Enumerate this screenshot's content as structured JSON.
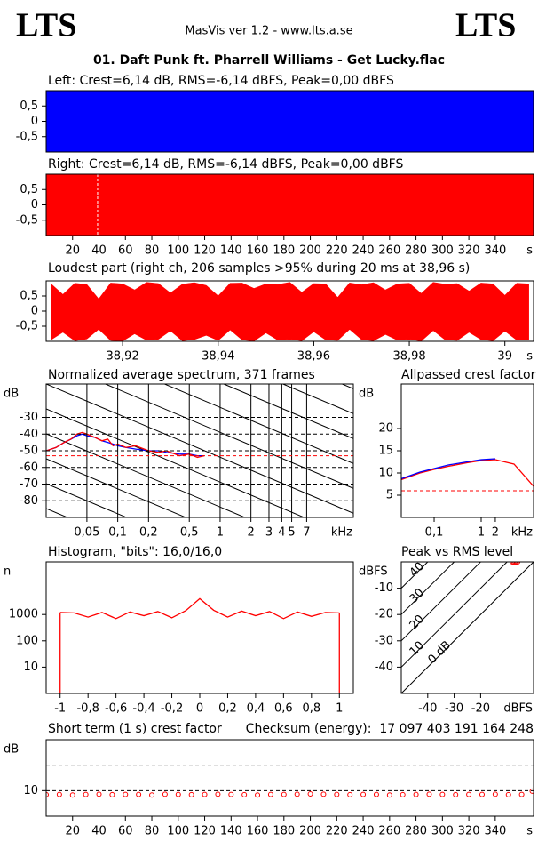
{
  "header": {
    "logo_left": "LTS",
    "logo_right": "LTS",
    "subtitle": "MasVis ver 1.2 - www.lts.a.se",
    "title": "01. Daft Punk ft. Pharrell Williams - Get Lucky.flac"
  },
  "chart_data": [
    {
      "type": "area",
      "title": "Left: Crest=6,14 dB, RMS=-6,14 dBFS, Peak=0,00 dBFS",
      "xlim": [
        0,
        369
      ],
      "ylim": [
        -1,
        1
      ],
      "yticks": [
        {
          "value": 0.5,
          "label": "0,5"
        },
        0,
        {
          "value": -0.5,
          "label": "-0,5"
        }
      ],
      "x": [
        0,
        369
      ],
      "max": [
        1,
        1
      ],
      "min": [
        -1,
        -1
      ],
      "color": "#0000ff"
    },
    {
      "type": "area",
      "title": "Right: Crest=6,14 dB, RMS=-6,14 dBFS, Peak=0,00 dBFS",
      "xlim": [
        0,
        369
      ],
      "ylim": [
        -1,
        1
      ],
      "yticks": [
        {
          "value": 0.5,
          "label": "0,5"
        },
        0,
        {
          "value": -0.5,
          "label": "-0,5"
        }
      ],
      "xticks": [
        20,
        40,
        60,
        80,
        100,
        120,
        140,
        160,
        180,
        200,
        220,
        240,
        260,
        280,
        300,
        320,
        340
      ],
      "x_label": "s",
      "x": [
        0,
        369
      ],
      "max": [
        1,
        1
      ],
      "min": [
        -1,
        -1
      ],
      "color": "#ff0000",
      "marker_x": 38.96
    },
    {
      "type": "area",
      "title": "Loudest part (right ch, 206 samples >95% during 20 ms at 38,96 s)",
      "xlim": [
        38.904,
        39.006
      ],
      "ylim": [
        -1,
        1
      ],
      "yticks": [
        {
          "value": 0.5,
          "label": "0,5"
        },
        0,
        {
          "value": -0.5,
          "label": "-0,5"
        }
      ],
      "xticks": [
        {
          "value": 38.92,
          "label": "38,92"
        },
        {
          "value": 38.94,
          "label": "38,94"
        },
        {
          "value": 38.96,
          "label": "38,96"
        },
        {
          "value": 38.98,
          "label": "38,98"
        },
        39
      ],
      "x_label": "s",
      "x": [
        38.905,
        38.9075,
        38.91,
        38.9125,
        38.915,
        38.9175,
        38.92,
        38.9225,
        38.925,
        38.9275,
        38.93,
        38.9325,
        38.935,
        38.9375,
        38.94,
        38.9425,
        38.945,
        38.9475,
        38.95,
        38.9525,
        38.955,
        38.9575,
        38.96,
        38.9625,
        38.965,
        38.9675,
        38.97,
        38.9725,
        38.975,
        38.9775,
        38.98,
        38.9825,
        38.985,
        38.9875,
        38.99,
        38.9925,
        38.995,
        38.9975,
        39,
        39.0025,
        39.005
      ],
      "max": [
        0.9,
        0.55,
        0.92,
        0.88,
        0.4,
        0.93,
        0.9,
        0.7,
        0.95,
        0.91,
        0.6,
        0.89,
        0.94,
        0.85,
        0.5,
        0.92,
        0.93,
        0.75,
        0.9,
        0.88,
        0.95,
        0.62,
        0.91,
        0.9,
        0.45,
        0.93,
        0.87,
        0.94,
        0.7,
        0.9,
        0.92,
        0.58,
        0.95,
        0.89,
        0.91,
        0.66,
        0.93,
        0.9,
        0.52,
        0.92,
        0.9
      ],
      "min": [
        -0.95,
        -0.7,
        -0.98,
        -0.92,
        -0.6,
        -0.97,
        -0.99,
        -0.75,
        -0.96,
        -0.93,
        -0.65,
        -0.98,
        -0.94,
        -0.8,
        -0.97,
        -0.62,
        -0.95,
        -0.99,
        -0.72,
        -0.96,
        -0.93,
        -0.98,
        -0.68,
        -0.95,
        -0.97,
        -0.6,
        -0.94,
        -0.98,
        -0.77,
        -0.96,
        -0.93,
        -0.99,
        -0.64,
        -0.95,
        -0.97,
        -0.7,
        -0.94,
        -0.98,
        -0.66,
        -0.96,
        -0.95
      ],
      "color": "#ff0000"
    },
    {
      "type": "line",
      "title": "Normalized average spectrum, 371 frames",
      "xscale": "log",
      "xlim": [
        0.02,
        20
      ],
      "ylim": [
        -90,
        -10
      ],
      "xticks": [
        {
          "value": 0.05,
          "label": "0,05"
        },
        {
          "value": 0.1,
          "label": "0,1"
        },
        {
          "value": 0.2,
          "label": "0,2"
        },
        {
          "value": 0.5,
          "label": "0,5"
        },
        1,
        2,
        3,
        4,
        5,
        7
      ],
      "yticks": [
        -30,
        -40,
        -50,
        -60,
        -70,
        -80
      ],
      "x_label": "kHz",
      "y_label": "dB",
      "grid": "dashed",
      "xgrid": true,
      "diagonals": true,
      "ref_line": -53,
      "ref_color": "#ff0000",
      "x": [
        0.02,
        0.025,
        0.03,
        0.035,
        0.04,
        0.045,
        0.05,
        0.06,
        0.07,
        0.08,
        0.09,
        0.1,
        0.12,
        0.15,
        0.2,
        0.25,
        0.3,
        0.4,
        0.5,
        0.6,
        0.7
      ],
      "series": [
        {
          "color": "#0000ff",
          "values": [
            -50,
            -48,
            -45,
            -43,
            -41,
            -40,
            -41,
            -42,
            -44,
            -45,
            -46,
            -47,
            -48,
            -49,
            -50,
            -50,
            -51,
            -52,
            -52,
            -53,
            -53
          ]
        },
        {
          "color": "#ff0000",
          "values": [
            -50,
            -48,
            -45,
            -43,
            -40,
            -39,
            -40,
            -42,
            -44,
            -43,
            -47,
            -46,
            -48,
            -47,
            -50,
            -51,
            -50,
            -53,
            -52,
            -54,
            -53
          ]
        }
      ]
    },
    {
      "type": "line",
      "title": "Allpassed crest factor",
      "xscale": "log",
      "xlim": [
        0.02,
        13
      ],
      "ylim": [
        0,
        30
      ],
      "xticks": [
        {
          "value": 0.1,
          "label": "0,1"
        },
        1,
        2
      ],
      "yticks": [
        5,
        10,
        15,
        20
      ],
      "x_label": "kHz",
      "y_label": "dB",
      "ref_line": 6,
      "ref_color": "#ff0000",
      "x": [
        0.02,
        0.05,
        0.1,
        0.2,
        0.5,
        1,
        2,
        5,
        13
      ],
      "series": [
        {
          "color": "#ff0000",
          "values": [
            8.5,
            10,
            10.8,
            11.5,
            12.3,
            12.8,
            13,
            12,
            7
          ]
        },
        {
          "color": "#0000ff",
          "values": [
            8.7,
            10.2,
            11,
            11.8,
            12.5,
            13,
            13.2,
            null,
            null
          ]
        }
      ]
    },
    {
      "type": "line",
      "title": "Histogram, \"bits\": 16,0/16,0",
      "yscale": "log",
      "xlim": [
        -1.1,
        1.1
      ],
      "ylim": [
        1,
        100000
      ],
      "xticks": [
        -1,
        {
          "value": -0.8,
          "label": "-0,8"
        },
        {
          "value": -0.6,
          "label": "-0,6"
        },
        {
          "value": -0.4,
          "label": "-0,4"
        },
        {
          "value": -0.2,
          "label": "-0,2"
        },
        0,
        {
          "value": 0.2,
          "label": "0,2"
        },
        {
          "value": 0.4,
          "label": "0,4"
        },
        {
          "value": 0.6,
          "label": "0,6"
        },
        {
          "value": 0.8,
          "label": "0,8"
        },
        1
      ],
      "yticks": [
        10,
        100,
        1000
      ],
      "y_label": "n",
      "edges": true,
      "x": [
        -1,
        -0.9,
        -0.8,
        -0.7,
        -0.6,
        -0.5,
        -0.4,
        -0.3,
        -0.2,
        -0.1,
        0,
        0.1,
        0.2,
        0.3,
        0.4,
        0.5,
        0.6,
        0.7,
        0.8,
        0.9,
        1
      ],
      "series": [
        {
          "color": "#ff0000",
          "values": [
            1200,
            1150,
            800,
            1200,
            700,
            1250,
            900,
            1300,
            750,
            1400,
            4000,
            1450,
            800,
            1350,
            900,
            1300,
            700,
            1250,
            850,
            1200,
            1150
          ]
        }
      ]
    },
    {
      "type": "scatter",
      "title": "Peak vs RMS level",
      "xlim": [
        -50,
        0
      ],
      "ylim": [
        -50,
        0
      ],
      "xticks": [
        -40,
        -30,
        -20
      ],
      "yticks": [
        -10,
        -20,
        -30,
        -40
      ],
      "x_label": "dBFS",
      "y_label": "dBFS",
      "crest_lines": [
        {
          "value": 0,
          "label": "0 dB"
        },
        10,
        20,
        30,
        40
      ],
      "x": [
        -8,
        -7.5,
        -7,
        -6.5,
        -6
      ],
      "values": [
        0,
        0,
        0,
        0,
        0
      ],
      "color": "#ff0000"
    },
    {
      "type": "scatter",
      "title": "Short term (1 s) crest factor",
      "title2": "Checksum (energy):  17 097 403 191 164 248",
      "xlim": [
        0,
        369
      ],
      "ylim": [
        0,
        30
      ],
      "xticks": [
        20,
        40,
        60,
        80,
        100,
        120,
        140,
        160,
        180,
        200,
        220,
        240,
        260,
        280,
        300,
        320,
        340
      ],
      "yticks": [
        10
      ],
      "x_label": "s",
      "y_label": "dB",
      "grid": "dashed",
      "ref_line": 20,
      "ref_color": "#000000",
      "x": [
        0,
        10,
        20,
        30,
        40,
        50,
        60,
        70,
        80,
        90,
        100,
        110,
        120,
        130,
        140,
        150,
        160,
        170,
        180,
        190,
        200,
        210,
        220,
        230,
        240,
        250,
        260,
        270,
        280,
        290,
        300,
        310,
        320,
        330,
        340,
        350,
        360,
        368
      ],
      "values": [
        8.4,
        8.5,
        8.3,
        8.5,
        8.6,
        8.4,
        8.5,
        8.5,
        8.3,
        8.6,
        8.5,
        8.4,
        8.5,
        8.6,
        8.5,
        8.4,
        8.3,
        8.5,
        8.5,
        8.6,
        8.7,
        8.6,
        8.5,
        8.4,
        8.5,
        8.5,
        8.3,
        8.4,
        8.5,
        8.6,
        8.5,
        8.4,
        8.5,
        8.5,
        8.6,
        8.4,
        8.5,
        9.8
      ],
      "color": "#ff0000"
    }
  ]
}
